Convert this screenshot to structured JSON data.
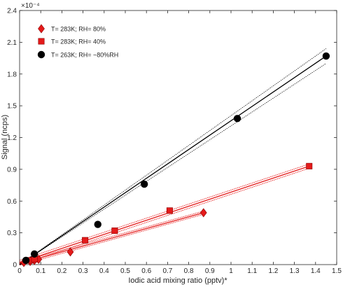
{
  "chart_data": {
    "type": "scatter",
    "title": "",
    "xlabel": "Iodic acid mixing ratio (pptv)*",
    "ylabel": "Signal (ncps)",
    "y_multiplier": "×10⁻⁴",
    "xlim": [
      0,
      1.5
    ],
    "ylim": [
      0,
      2.4
    ],
    "xticks": [
      "0",
      "0.1",
      "0.2",
      "0.3",
      "0.4",
      "0.5",
      "0.6",
      "0.7",
      "0.8",
      "0.9",
      "1",
      "1.1",
      "1.2",
      "1.3",
      "1.4",
      "1.5"
    ],
    "yticks": [
      "0",
      "0.3",
      "0.6",
      "0.9",
      "1.2",
      "1.5",
      "1.8",
      "2.1",
      "2.4"
    ],
    "legend_position": "top-left",
    "grid": false,
    "series": [
      {
        "name": "T= 283K; RH= 80%",
        "marker": "diamond",
        "color": "#e41a1a",
        "x": [
          0.02,
          0.05,
          0.07,
          0.09,
          0.24,
          0.87
        ],
        "y": [
          0.02,
          0.03,
          0.04,
          0.05,
          0.12,
          0.49
        ],
        "fit_x": [
          0,
          0.87
        ],
        "fit_y": [
          0.01,
          0.49
        ],
        "ci_offset": 0.015
      },
      {
        "name": "T= 283K; RH= 40%",
        "marker": "square",
        "color": "#e41a1a",
        "x": [
          0.05,
          0.07,
          0.31,
          0.45,
          0.71,
          1.37
        ],
        "y": [
          0.04,
          0.05,
          0.23,
          0.32,
          0.51,
          0.93
        ],
        "fit_x": [
          0,
          1.37
        ],
        "fit_y": [
          0.02,
          0.93
        ],
        "ci_offset": 0.02
      },
      {
        "name": "T= 263K; RH= ~80%RH",
        "marker": "circle",
        "color": "#000000",
        "x": [
          0.03,
          0.07,
          0.37,
          0.59,
          1.03,
          1.45
        ],
        "y": [
          0.04,
          0.1,
          0.38,
          0.76,
          1.38,
          1.97
        ],
        "fit_x": [
          0,
          1.45
        ],
        "fit_y": [
          0.0,
          1.97
        ],
        "ci_offset_end": 0.07
      }
    ]
  }
}
